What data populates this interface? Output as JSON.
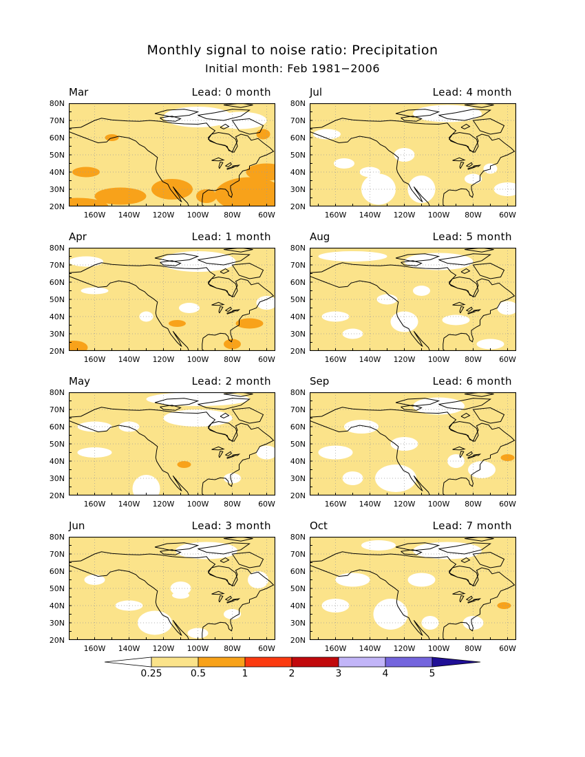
{
  "title": "Monthly signal to noise ratio: Precipitation",
  "subtitle": "Initial month: Feb 1981−2006",
  "lat_labels": [
    "80N",
    "70N",
    "60N",
    "50N",
    "40N",
    "30N",
    "20N"
  ],
  "lon_labels": [
    "160W",
    "140W",
    "120W",
    "100W",
    "80W",
    "60W"
  ],
  "panels": [
    {
      "month": "Mar",
      "lead": "Lead: 0 month"
    },
    {
      "month": "Jul",
      "lead": "Lead: 4 month"
    },
    {
      "month": "Apr",
      "lead": "Lead: 1 month"
    },
    {
      "month": "Aug",
      "lead": "Lead: 5 month"
    },
    {
      "month": "May",
      "lead": "Lead: 2 month"
    },
    {
      "month": "Sep",
      "lead": "Lead: 6 month"
    },
    {
      "month": "Jun",
      "lead": "Lead: 3 month"
    },
    {
      "month": "Oct",
      "lead": "Lead: 7 month"
    }
  ],
  "colorbar": {
    "labels": [
      "0.25",
      "0.5",
      "1",
      "2",
      "3",
      "4",
      "5"
    ],
    "colors": [
      "#ffffff",
      "#fbe38a",
      "#f8a21a",
      "#fb3a10",
      "#c1090c",
      "#c2b5f8",
      "#7465dd",
      "#200f96"
    ]
  }
}
